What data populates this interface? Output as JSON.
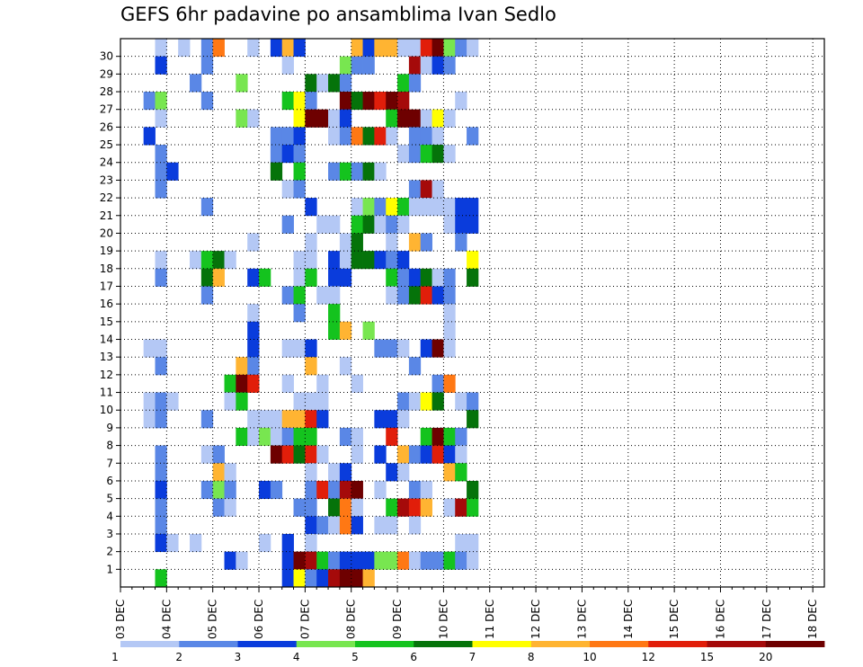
{
  "chart_data": {
    "type": "heatmap",
    "title": "GEFS 6hr padavine po ansamblima Ivan Sedlo",
    "xlabel": "",
    "ylabel": "",
    "x_tick_labels": [
      "03 DEC",
      "04 DEC",
      "05 DEC",
      "06 DEC",
      "07 DEC",
      "08 DEC",
      "09 DEC",
      "10 DEC",
      "11 DEC",
      "12 DEC",
      "13 DEC",
      "14 DEC",
      "15 DEC",
      "16 DEC",
      "17 DEC",
      "18 DEC"
    ],
    "y_tick_labels": [
      "1",
      "2",
      "3",
      "4",
      "5",
      "6",
      "7",
      "8",
      "9",
      "10",
      "11",
      "12",
      "13",
      "14",
      "15",
      "16",
      "17",
      "18",
      "19",
      "20",
      "21",
      "22",
      "23",
      "24",
      "25",
      "26",
      "27",
      "28",
      "29",
      "30"
    ],
    "time_steps_per_day": 4,
    "n_time_steps": 61,
    "n_members": 30,
    "grid": true,
    "legend_placement": "bottom",
    "legend": {
      "labels": [
        "1",
        "2",
        "3",
        "4",
        "5",
        "6",
        "7",
        "8",
        "10",
        "12",
        "15",
        "20"
      ],
      "colors": [
        "#b4c8f5",
        "#5a87e6",
        "#0a3cdc",
        "#78e650",
        "#14c31e",
        "#05730a",
        "#ffff00",
        "#ffb432",
        "#ff7814",
        "#e11e0a",
        "#a50a0a",
        "#6e0000"
      ]
    },
    "cells": [
      [
        30,
        3,
        1
      ],
      [
        30,
        5,
        1
      ],
      [
        30,
        7,
        2
      ],
      [
        30,
        8,
        10
      ],
      [
        30,
        11,
        1
      ],
      [
        30,
        13,
        3
      ],
      [
        30,
        14,
        8
      ],
      [
        30,
        15,
        3
      ],
      [
        30,
        20,
        8
      ],
      [
        30,
        21,
        3
      ],
      [
        30,
        22,
        8
      ],
      [
        30,
        23,
        8
      ],
      [
        30,
        24,
        1
      ],
      [
        30,
        25,
        1
      ],
      [
        30,
        26,
        12
      ],
      [
        30,
        27,
        20
      ],
      [
        30,
        28,
        4
      ],
      [
        30,
        29,
        2
      ],
      [
        30,
        30,
        1
      ],
      [
        29,
        3,
        3
      ],
      [
        29,
        7,
        2
      ],
      [
        29,
        14,
        1
      ],
      [
        29,
        19,
        4
      ],
      [
        29,
        20,
        2
      ],
      [
        29,
        21,
        2
      ],
      [
        29,
        25,
        15
      ],
      [
        29,
        26,
        1
      ],
      [
        29,
        27,
        3
      ],
      [
        29,
        28,
        2
      ],
      [
        28,
        6,
        2
      ],
      [
        28,
        10,
        4
      ],
      [
        28,
        16,
        6
      ],
      [
        28,
        17,
        1
      ],
      [
        28,
        18,
        6
      ],
      [
        28,
        19,
        2
      ],
      [
        28,
        24,
        5
      ],
      [
        28,
        25,
        2
      ],
      [
        27,
        2,
        2
      ],
      [
        27,
        3,
        4
      ],
      [
        27,
        7,
        2
      ],
      [
        27,
        14,
        5
      ],
      [
        27,
        15,
        7
      ],
      [
        27,
        16,
        2
      ],
      [
        27,
        19,
        20
      ],
      [
        27,
        20,
        6
      ],
      [
        27,
        21,
        20
      ],
      [
        27,
        22,
        12
      ],
      [
        27,
        23,
        20
      ],
      [
        27,
        24,
        15
      ],
      [
        27,
        29,
        1
      ],
      [
        26,
        3,
        1
      ],
      [
        26,
        10,
        4
      ],
      [
        26,
        11,
        1
      ],
      [
        26,
        15,
        7
      ],
      [
        26,
        16,
        20
      ],
      [
        26,
        17,
        20
      ],
      [
        26,
        18,
        1
      ],
      [
        26,
        19,
        3
      ],
      [
        26,
        23,
        5
      ],
      [
        26,
        24,
        20
      ],
      [
        26,
        25,
        20
      ],
      [
        26,
        26,
        1
      ],
      [
        26,
        27,
        7
      ],
      [
        26,
        28,
        1
      ],
      [
        25,
        2,
        3
      ],
      [
        25,
        13,
        2
      ],
      [
        25,
        14,
        2
      ],
      [
        25,
        15,
        3
      ],
      [
        25,
        18,
        1
      ],
      [
        25,
        19,
        2
      ],
      [
        25,
        20,
        10
      ],
      [
        25,
        21,
        6
      ],
      [
        25,
        22,
        12
      ],
      [
        25,
        23,
        1
      ],
      [
        25,
        25,
        2
      ],
      [
        25,
        26,
        2
      ],
      [
        25,
        27,
        1
      ],
      [
        25,
        30,
        2
      ],
      [
        24,
        3,
        2
      ],
      [
        24,
        13,
        2
      ],
      [
        24,
        14,
        3
      ],
      [
        24,
        15,
        2
      ],
      [
        24,
        24,
        1
      ],
      [
        24,
        25,
        2
      ],
      [
        24,
        26,
        5
      ],
      [
        24,
        27,
        6
      ],
      [
        24,
        28,
        1
      ],
      [
        23,
        3,
        2
      ],
      [
        23,
        4,
        3
      ],
      [
        23,
        13,
        6
      ],
      [
        23,
        15,
        5
      ],
      [
        23,
        18,
        2
      ],
      [
        23,
        19,
        5
      ],
      [
        23,
        20,
        2
      ],
      [
        23,
        21,
        6
      ],
      [
        23,
        22,
        1
      ],
      [
        22,
        3,
        2
      ],
      [
        22,
        14,
        1
      ],
      [
        22,
        15,
        2
      ],
      [
        22,
        25,
        2
      ],
      [
        22,
        26,
        15
      ],
      [
        22,
        27,
        1
      ],
      [
        21,
        7,
        2
      ],
      [
        21,
        16,
        3
      ],
      [
        21,
        20,
        1
      ],
      [
        21,
        21,
        4
      ],
      [
        21,
        22,
        2
      ],
      [
        21,
        23,
        7
      ],
      [
        21,
        24,
        5
      ],
      [
        21,
        25,
        1
      ],
      [
        21,
        26,
        1
      ],
      [
        21,
        27,
        1
      ],
      [
        21,
        28,
        1
      ],
      [
        21,
        29,
        3
      ],
      [
        21,
        30,
        3
      ],
      [
        20,
        14,
        2
      ],
      [
        20,
        17,
        1
      ],
      [
        20,
        18,
        1
      ],
      [
        20,
        20,
        5
      ],
      [
        20,
        21,
        6
      ],
      [
        20,
        22,
        1
      ],
      [
        20,
        23,
        2
      ],
      [
        20,
        24,
        1
      ],
      [
        20,
        28,
        1
      ],
      [
        20,
        29,
        3
      ],
      [
        20,
        30,
        3
      ],
      [
        19,
        11,
        1
      ],
      [
        19,
        16,
        1
      ],
      [
        19,
        19,
        1
      ],
      [
        19,
        20,
        6
      ],
      [
        19,
        23,
        1
      ],
      [
        19,
        25,
        8
      ],
      [
        19,
        26,
        2
      ],
      [
        19,
        29,
        2
      ],
      [
        18,
        3,
        1
      ],
      [
        18,
        6,
        1
      ],
      [
        18,
        7,
        5
      ],
      [
        18,
        8,
        6
      ],
      [
        18,
        9,
        1
      ],
      [
        18,
        15,
        1
      ],
      [
        18,
        16,
        1
      ],
      [
        18,
        18,
        3
      ],
      [
        18,
        19,
        1
      ],
      [
        18,
        20,
        6
      ],
      [
        18,
        21,
        6
      ],
      [
        18,
        22,
        3
      ],
      [
        18,
        23,
        2
      ],
      [
        18,
        24,
        3
      ],
      [
        18,
        30,
        7
      ],
      [
        17,
        3,
        2
      ],
      [
        17,
        7,
        6
      ],
      [
        17,
        8,
        8
      ],
      [
        17,
        11,
        3
      ],
      [
        17,
        12,
        5
      ],
      [
        17,
        15,
        1
      ],
      [
        17,
        16,
        5
      ],
      [
        17,
        18,
        3
      ],
      [
        17,
        19,
        3
      ],
      [
        17,
        23,
        5
      ],
      [
        17,
        24,
        2
      ],
      [
        17,
        25,
        3
      ],
      [
        17,
        26,
        6
      ],
      [
        17,
        27,
        1
      ],
      [
        17,
        28,
        2
      ],
      [
        17,
        30,
        6
      ],
      [
        16,
        7,
        2
      ],
      [
        16,
        14,
        2
      ],
      [
        16,
        15,
        5
      ],
      [
        16,
        17,
        1
      ],
      [
        16,
        18,
        1
      ],
      [
        16,
        23,
        1
      ],
      [
        16,
        24,
        2
      ],
      [
        16,
        25,
        6
      ],
      [
        16,
        26,
        12
      ],
      [
        16,
        27,
        3
      ],
      [
        16,
        28,
        2
      ],
      [
        15,
        11,
        1
      ],
      [
        15,
        15,
        2
      ],
      [
        15,
        18,
        5
      ],
      [
        15,
        28,
        1
      ],
      [
        14,
        11,
        3
      ],
      [
        14,
        18,
        5
      ],
      [
        14,
        19,
        8
      ],
      [
        14,
        21,
        4
      ],
      [
        14,
        28,
        1
      ],
      [
        13,
        2,
        1
      ],
      [
        13,
        3,
        1
      ],
      [
        13,
        11,
        3
      ],
      [
        13,
        14,
        1
      ],
      [
        13,
        15,
        1
      ],
      [
        13,
        16,
        3
      ],
      [
        13,
        22,
        2
      ],
      [
        13,
        23,
        2
      ],
      [
        13,
        24,
        1
      ],
      [
        13,
        26,
        3
      ],
      [
        13,
        27,
        20
      ],
      [
        13,
        28,
        1
      ],
      [
        12,
        3,
        2
      ],
      [
        12,
        10,
        8
      ],
      [
        12,
        11,
        2
      ],
      [
        12,
        16,
        8
      ],
      [
        12,
        19,
        1
      ],
      [
        12,
        25,
        2
      ],
      [
        11,
        9,
        5
      ],
      [
        11,
        10,
        20
      ],
      [
        11,
        11,
        12
      ],
      [
        11,
        14,
        1
      ],
      [
        11,
        17,
        1
      ],
      [
        11,
        20,
        1
      ],
      [
        11,
        27,
        2
      ],
      [
        11,
        28,
        10
      ],
      [
        10,
        2,
        1
      ],
      [
        10,
        3,
        2
      ],
      [
        10,
        4,
        1
      ],
      [
        10,
        9,
        1
      ],
      [
        10,
        10,
        5
      ],
      [
        10,
        15,
        1
      ],
      [
        10,
        16,
        1
      ],
      [
        10,
        17,
        1
      ],
      [
        10,
        24,
        2
      ],
      [
        10,
        25,
        1
      ],
      [
        10,
        26,
        7
      ],
      [
        10,
        27,
        6
      ],
      [
        10,
        29,
        1
      ],
      [
        10,
        30,
        2
      ],
      [
        9,
        2,
        1
      ],
      [
        9,
        3,
        2
      ],
      [
        9,
        7,
        2
      ],
      [
        9,
        11,
        1
      ],
      [
        9,
        12,
        1
      ],
      [
        9,
        13,
        1
      ],
      [
        9,
        14,
        8
      ],
      [
        9,
        15,
        8
      ],
      [
        9,
        16,
        12
      ],
      [
        9,
        17,
        3
      ],
      [
        9,
        22,
        3
      ],
      [
        9,
        23,
        3
      ],
      [
        9,
        24,
        1
      ],
      [
        9,
        30,
        6
      ],
      [
        8,
        10,
        5
      ],
      [
        8,
        11,
        1
      ],
      [
        8,
        12,
        4
      ],
      [
        8,
        13,
        1
      ],
      [
        8,
        14,
        2
      ],
      [
        8,
        15,
        5
      ],
      [
        8,
        16,
        5
      ],
      [
        8,
        19,
        2
      ],
      [
        8,
        20,
        1
      ],
      [
        8,
        23,
        12
      ],
      [
        8,
        26,
        5
      ],
      [
        8,
        27,
        20
      ],
      [
        8,
        28,
        5
      ],
      [
        8,
        29,
        2
      ],
      [
        7,
        3,
        2
      ],
      [
        7,
        7,
        1
      ],
      [
        7,
        8,
        2
      ],
      [
        7,
        13,
        20
      ],
      [
        7,
        14,
        12
      ],
      [
        7,
        15,
        6
      ],
      [
        7,
        16,
        12
      ],
      [
        7,
        17,
        1
      ],
      [
        7,
        20,
        1
      ],
      [
        7,
        22,
        3
      ],
      [
        7,
        24,
        8
      ],
      [
        7,
        25,
        2
      ],
      [
        7,
        26,
        3
      ],
      [
        7,
        27,
        12
      ],
      [
        7,
        28,
        3
      ],
      [
        7,
        29,
        1
      ],
      [
        6,
        3,
        2
      ],
      [
        6,
        8,
        8
      ],
      [
        6,
        9,
        1
      ],
      [
        6,
        16,
        1
      ],
      [
        6,
        18,
        1
      ],
      [
        6,
        19,
        3
      ],
      [
        6,
        23,
        3
      ],
      [
        6,
        24,
        1
      ],
      [
        6,
        28,
        8
      ],
      [
        6,
        29,
        5
      ],
      [
        5,
        3,
        3
      ],
      [
        5,
        7,
        2
      ],
      [
        5,
        8,
        4
      ],
      [
        5,
        9,
        2
      ],
      [
        5,
        12,
        3
      ],
      [
        5,
        13,
        2
      ],
      [
        5,
        16,
        2
      ],
      [
        5,
        17,
        12
      ],
      [
        5,
        18,
        2
      ],
      [
        5,
        19,
        15
      ],
      [
        5,
        20,
        20
      ],
      [
        5,
        22,
        1
      ],
      [
        5,
        25,
        2
      ],
      [
        5,
        26,
        1
      ],
      [
        5,
        30,
        6
      ],
      [
        4,
        3,
        2
      ],
      [
        4,
        8,
        2
      ],
      [
        4,
        9,
        1
      ],
      [
        4,
        15,
        2
      ],
      [
        4,
        16,
        2
      ],
      [
        4,
        18,
        6
      ],
      [
        4,
        19,
        10
      ],
      [
        4,
        20,
        1
      ],
      [
        4,
        23,
        5
      ],
      [
        4,
        24,
        15
      ],
      [
        4,
        25,
        12
      ],
      [
        4,
        26,
        8
      ],
      [
        4,
        28,
        1
      ],
      [
        4,
        29,
        15
      ],
      [
        4,
        30,
        5
      ],
      [
        3,
        3,
        2
      ],
      [
        3,
        16,
        3
      ],
      [
        3,
        17,
        2
      ],
      [
        3,
        18,
        1
      ],
      [
        3,
        19,
        10
      ],
      [
        3,
        20,
        3
      ],
      [
        3,
        22,
        1
      ],
      [
        3,
        23,
        1
      ],
      [
        3,
        25,
        1
      ],
      [
        2,
        3,
        3
      ],
      [
        2,
        4,
        1
      ],
      [
        2,
        6,
        1
      ],
      [
        2,
        12,
        1
      ],
      [
        2,
        14,
        3
      ],
      [
        2,
        16,
        1
      ],
      [
        2,
        29,
        1
      ],
      [
        2,
        30,
        1
      ],
      [
        1,
        9,
        3
      ],
      [
        1,
        10,
        1
      ],
      [
        1,
        14,
        3
      ],
      [
        1,
        15,
        20
      ],
      [
        1,
        16,
        15
      ],
      [
        1,
        17,
        5
      ],
      [
        1,
        18,
        2
      ],
      [
        1,
        19,
        3
      ],
      [
        1,
        20,
        3
      ],
      [
        1,
        21,
        3
      ],
      [
        1,
        22,
        4
      ],
      [
        1,
        23,
        4
      ],
      [
        1,
        24,
        10
      ],
      [
        1,
        25,
        1
      ],
      [
        1,
        26,
        2
      ],
      [
        1,
        27,
        2
      ],
      [
        1,
        28,
        5
      ],
      [
        1,
        29,
        2
      ],
      [
        1,
        30,
        1
      ],
      [
        0,
        3,
        5
      ],
      [
        0,
        14,
        3
      ],
      [
        0,
        15,
        7
      ],
      [
        0,
        16,
        2
      ],
      [
        0,
        17,
        3
      ],
      [
        0,
        18,
        15
      ],
      [
        0,
        19,
        20
      ],
      [
        0,
        20,
        20
      ],
      [
        0,
        21,
        8
      ]
    ]
  }
}
